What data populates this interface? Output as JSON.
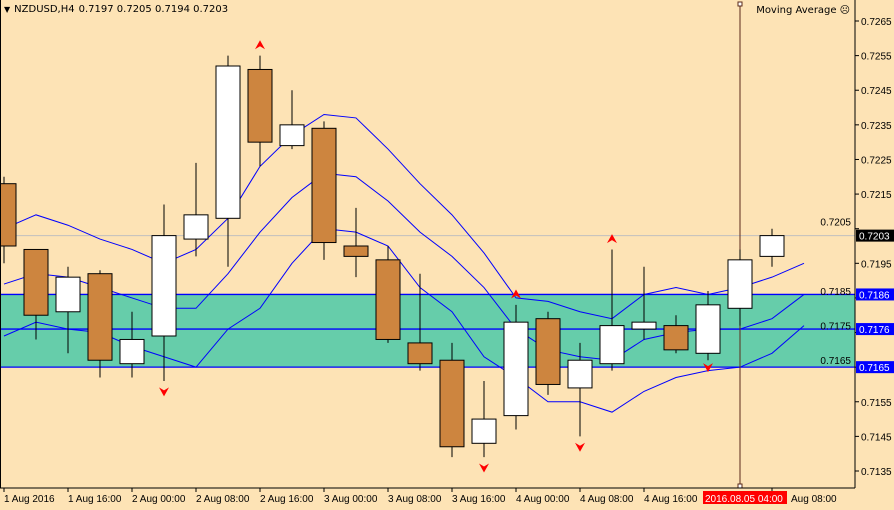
{
  "header": {
    "menu_icon": "triangle-down-icon",
    "symbol": "NZDUSD,H4",
    "ohlc": "0.7197 0.7205 0.7194 0.7203"
  },
  "indicator": {
    "label": "Moving Average",
    "icon": "frown-face-icon"
  },
  "colors": {
    "background": "#FDE3B5",
    "bull": "#FFFFFF",
    "bear": "#CD853F",
    "ma": "#0000FF",
    "band": "#66CDAA",
    "arrow": "#FF0000",
    "crosshair": "#8B0000"
  },
  "chart_data": {
    "type": "candlestick",
    "title": "NZDUSD,H4",
    "ylim": [
      0.713,
      0.7268
    ],
    "yticks": [
      "0.7265",
      "0.7255",
      "0.7245",
      "0.7235",
      "0.7225",
      "0.7215",
      "0.7205",
      "0.7195",
      "0.7185",
      "0.7175",
      "0.7165",
      "0.7155",
      "0.7145",
      "0.7135"
    ],
    "xtick_labels": [
      {
        "i": 0,
        "label": "1 Aug 2016"
      },
      {
        "i": 2,
        "label": "1 Aug 16:00"
      },
      {
        "i": 4,
        "label": "2 Aug 00:00"
      },
      {
        "i": 6,
        "label": "2 Aug 08:00"
      },
      {
        "i": 8,
        "label": "2 Aug 16:00"
      },
      {
        "i": 10,
        "label": "3 Aug 00:00"
      },
      {
        "i": 12,
        "label": "3 Aug 08:00"
      },
      {
        "i": 14,
        "label": "3 Aug 16:00"
      },
      {
        "i": 16,
        "label": "4 Aug 00:00"
      },
      {
        "i": 18,
        "label": "4 Aug 08:00"
      },
      {
        "i": 20,
        "label": "4 Aug 16:00"
      },
      {
        "i": 24,
        "label": "Aug 08:00"
      }
    ],
    "candles": [
      {
        "o": 0.7218,
        "h": 0.722,
        "l": 0.7195,
        "c": 0.72
      },
      {
        "o": 0.7199,
        "h": 0.7199,
        "l": 0.7173,
        "c": 0.718
      },
      {
        "o": 0.7181,
        "h": 0.7194,
        "l": 0.7169,
        "c": 0.7191
      },
      {
        "o": 0.7192,
        "h": 0.7193,
        "l": 0.7162,
        "c": 0.7167
      },
      {
        "o": 0.7166,
        "h": 0.7181,
        "l": 0.7162,
        "c": 0.7173
      },
      {
        "o": 0.7174,
        "h": 0.7212,
        "l": 0.7161,
        "c": 0.7203
      },
      {
        "o": 0.7202,
        "h": 0.7224,
        "l": 0.7197,
        "c": 0.7209
      },
      {
        "o": 0.7208,
        "h": 0.7255,
        "l": 0.7194,
        "c": 0.7252
      },
      {
        "o": 0.7251,
        "h": 0.7255,
        "l": 0.7223,
        "c": 0.723
      },
      {
        "o": 0.7229,
        "h": 0.7245,
        "l": 0.7228,
        "c": 0.7235
      },
      {
        "o": 0.7234,
        "h": 0.7236,
        "l": 0.7196,
        "c": 0.7201
      },
      {
        "o": 0.72,
        "h": 0.7211,
        "l": 0.7191,
        "c": 0.7197
      },
      {
        "o": 0.7196,
        "h": 0.72,
        "l": 0.7172,
        "c": 0.7173
      },
      {
        "o": 0.7172,
        "h": 0.7192,
        "l": 0.7164,
        "c": 0.7166
      },
      {
        "o": 0.7167,
        "h": 0.7172,
        "l": 0.7139,
        "c": 0.7142
      },
      {
        "o": 0.7143,
        "h": 0.7161,
        "l": 0.7139,
        "c": 0.715
      },
      {
        "o": 0.7151,
        "h": 0.7183,
        "l": 0.7147,
        "c": 0.7178
      },
      {
        "o": 0.7179,
        "h": 0.7181,
        "l": 0.7157,
        "c": 0.716
      },
      {
        "o": 0.7159,
        "h": 0.7172,
        "l": 0.7145,
        "c": 0.7167
      },
      {
        "o": 0.7166,
        "h": 0.7199,
        "l": 0.7164,
        "c": 0.7177
      },
      {
        "o": 0.7176,
        "h": 0.7194,
        "l": 0.7173,
        "c": 0.7178
      },
      {
        "o": 0.7177,
        "h": 0.718,
        "l": 0.7169,
        "c": 0.717
      },
      {
        "o": 0.7169,
        "h": 0.7187,
        "l": 0.7167,
        "c": 0.7183
      },
      {
        "o": 0.7182,
        "h": 0.7199,
        "l": 0.7177,
        "c": 0.7196
      },
      {
        "o": 0.7197,
        "h": 0.7205,
        "l": 0.7194,
        "c": 0.7203
      }
    ],
    "series": [
      {
        "values": [
          0.7205,
          0.7209,
          0.7206,
          0.7202,
          0.7199,
          0.7195,
          0.7199,
          0.7208,
          0.7223,
          0.7232,
          0.7238,
          0.7237,
          0.7228,
          0.7218,
          0.7209,
          0.7198,
          0.7185,
          0.7184,
          0.7181,
          0.7179,
          0.7186,
          0.7188,
          0.7186,
          0.7188,
          0.7191,
          0.7195
        ]
      },
      {
        "values": [
          0.7189,
          0.7192,
          0.7191,
          0.7188,
          0.7185,
          0.7182,
          0.7182,
          0.7192,
          0.7204,
          0.7214,
          0.7221,
          0.722,
          0.7213,
          0.7204,
          0.7197,
          0.7188,
          0.7176,
          0.717,
          0.7168,
          0.7167,
          0.7173,
          0.7175,
          0.7176,
          0.7176,
          0.7179,
          0.7186
        ]
      },
      {
        "values": [
          0.7174,
          0.7178,
          0.7176,
          0.7175,
          0.7171,
          0.7168,
          0.7165,
          0.7176,
          0.7182,
          0.7195,
          0.7205,
          0.7204,
          0.72,
          0.7188,
          0.7181,
          0.7168,
          0.7162,
          0.7155,
          0.7155,
          0.7152,
          0.7158,
          0.7162,
          0.7164,
          0.7165,
          0.7169,
          0.7177
        ]
      }
    ],
    "levels": [
      "0.7186",
      "0.7176",
      "0.7165"
    ],
    "band": [
      0.7165,
      0.7186
    ],
    "current_price": "0.7203",
    "arrows": [
      {
        "i": 8,
        "dir": "up",
        "price": 0.7258
      },
      {
        "i": 5,
        "dir": "down",
        "price": 0.7158
      },
      {
        "i": 15,
        "dir": "down",
        "price": 0.7136
      },
      {
        "i": 16,
        "dir": "up",
        "price": 0.7186
      },
      {
        "i": 18,
        "dir": "down",
        "price": 0.7142
      },
      {
        "i": 19,
        "dir": "up",
        "price": 0.7202
      },
      {
        "i": 22,
        "dir": "down",
        "price": 0.7165
      }
    ],
    "crosshair": {
      "i": 23,
      "label": "2016.08.05 04:00"
    },
    "grid": false
  }
}
